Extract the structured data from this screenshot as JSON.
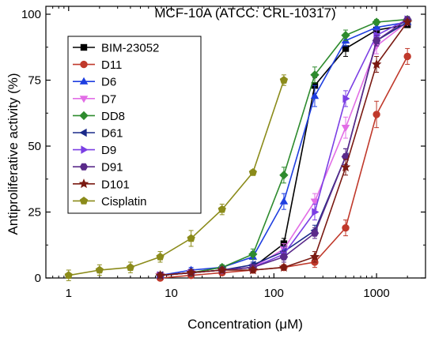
{
  "chart_data": {
    "type": "line",
    "title": "MCF-10A (ATCC: CRL-10317)",
    "xlabel_prefix": "Concentration (",
    "xlabel_unit": "μM",
    "xlabel_suffix": ")",
    "ylabel": "Antiproliferative activity (%)",
    "xscale": "log",
    "xlim": [
      0.6,
      3000
    ],
    "ylim": [
      0,
      103
    ],
    "xticks": [
      1,
      10,
      100,
      1000
    ],
    "xtick_labels": [
      "1",
      "10",
      "100",
      "1000"
    ],
    "yticks": [
      0,
      25,
      50,
      75,
      100
    ],
    "ytick_labels": [
      "0",
      "25",
      "50",
      "75",
      "100"
    ],
    "legend_position": "top-left",
    "series": [
      {
        "name": "BIM-23052",
        "color": "#000000",
        "marker": "square",
        "x": [
          7.8,
          15.6,
          31.25,
          62.5,
          125,
          250,
          500,
          1000,
          2000
        ],
        "y": [
          1,
          2,
          3,
          4,
          13,
          73,
          87,
          94,
          96
        ],
        "err": [
          1,
          1,
          1,
          1,
          2,
          3,
          3,
          1,
          1
        ]
      },
      {
        "name": "D11",
        "color": "#c0392b",
        "marker": "circle",
        "x": [
          7.8,
          15.6,
          31.25,
          62.5,
          125,
          250,
          500,
          1000,
          2000
        ],
        "y": [
          0,
          1,
          2,
          3,
          4,
          6,
          19,
          62,
          84
        ],
        "err": [
          1,
          1,
          1,
          1,
          1,
          2,
          3,
          5,
          3
        ]
      },
      {
        "name": "D6",
        "color": "#1f3fe0",
        "marker": "triangle-up",
        "x": [
          7.8,
          15.6,
          31.25,
          62.5,
          125,
          250,
          500,
          1000,
          2000
        ],
        "y": [
          1,
          3,
          4,
          8,
          29,
          69,
          90,
          95,
          97
        ],
        "err": [
          1,
          1,
          1,
          2,
          3,
          4,
          2,
          1,
          1
        ]
      },
      {
        "name": "D7",
        "color": "#e26ee6",
        "marker": "triangle-down",
        "x": [
          7.8,
          15.6,
          31.25,
          62.5,
          125,
          250,
          500,
          1000,
          2000
        ],
        "y": [
          1,
          2,
          3,
          4,
          11,
          29,
          57,
          88,
          97
        ],
        "err": [
          1,
          1,
          1,
          1,
          2,
          3,
          4,
          3,
          1
        ]
      },
      {
        "name": "DD8",
        "color": "#2e8b2e",
        "marker": "diamond",
        "x": [
          7.8,
          15.6,
          31.25,
          62.5,
          125,
          250,
          500,
          1000,
          2000
        ],
        "y": [
          1,
          2,
          4,
          9,
          39,
          77,
          92,
          97,
          98
        ],
        "err": [
          1,
          1,
          1,
          2,
          3,
          3,
          2,
          1,
          1
        ]
      },
      {
        "name": "D61",
        "color": "#1a2a8a",
        "marker": "triangle-left",
        "x": [
          7.8,
          15.6,
          31.25,
          62.5,
          125,
          250,
          500,
          1000,
          2000
        ],
        "y": [
          1,
          2,
          3,
          5,
          10,
          18,
          46,
          90,
          97
        ],
        "err": [
          1,
          1,
          1,
          1,
          2,
          2,
          3,
          2,
          1
        ]
      },
      {
        "name": "D9",
        "color": "#7b3fe4",
        "marker": "triangle-right",
        "x": [
          7.8,
          15.6,
          31.25,
          62.5,
          125,
          250,
          500,
          1000,
          2000
        ],
        "y": [
          1,
          2,
          3,
          4,
          9,
          25,
          68,
          92,
          98
        ],
        "err": [
          1,
          1,
          1,
          1,
          2,
          3,
          3,
          2,
          1
        ]
      },
      {
        "name": "D91",
        "color": "#5a2a8a",
        "marker": "hexagon",
        "x": [
          7.8,
          15.6,
          31.25,
          62.5,
          125,
          250,
          500,
          1000,
          2000
        ],
        "y": [
          1,
          2,
          3,
          4,
          8,
          17,
          46,
          90,
          98
        ],
        "err": [
          1,
          1,
          1,
          1,
          2,
          2,
          3,
          2,
          1
        ]
      },
      {
        "name": "D101",
        "color": "#7a1a12",
        "marker": "star",
        "x": [
          7.8,
          15.6,
          31.25,
          62.5,
          125,
          250,
          500,
          1000,
          2000
        ],
        "y": [
          1,
          2,
          3,
          3,
          4,
          8,
          42,
          81,
          97
        ],
        "err": [
          1,
          1,
          1,
          1,
          1,
          2,
          3,
          3,
          1
        ]
      },
      {
        "name": "Cisplatin",
        "color": "#8b8b1a",
        "marker": "pentagon",
        "x": [
          1,
          2,
          4,
          7.8,
          15.6,
          31.25,
          62.5,
          125
        ],
        "y": [
          1,
          3,
          4,
          8,
          15,
          26,
          40,
          75
        ],
        "err": [
          2,
          2,
          2,
          2,
          3,
          2,
          1,
          2
        ]
      }
    ]
  }
}
